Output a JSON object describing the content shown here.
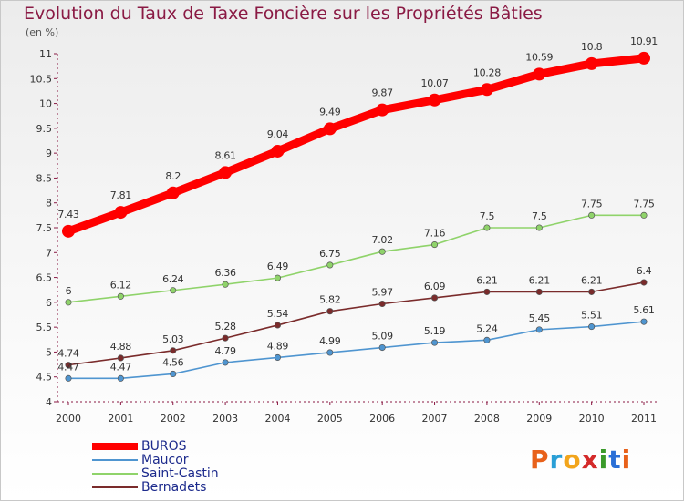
{
  "header": {
    "title": "Evolution du Taux de Taxe Foncière sur les Propriétés Bâties",
    "unit": "(en %)"
  },
  "brand": {
    "text": "Proxiti",
    "letters": [
      "P",
      "r",
      "o",
      "x",
      "i",
      "t",
      "i"
    ],
    "colors": [
      "#e8611a",
      "#2a9fd6",
      "#f2a51c",
      "#d42a2a",
      "#3a9a2a",
      "#2a6fd6",
      "#e8611a"
    ]
  },
  "chart_data": {
    "type": "line",
    "title": "Evolution du Taux de Taxe Foncière sur les Propriétés Bâties",
    "ylabel": "(en %)",
    "xlabel": "",
    "ylim": [
      4,
      11
    ],
    "yticks": [
      "4",
      "4.5",
      "5",
      "5.5",
      "6",
      "6.5",
      "7",
      "7.5",
      "8",
      "8.5",
      "9",
      "9.5",
      "10",
      "10.5",
      "11"
    ],
    "x": [
      "2000",
      "2001",
      "2002",
      "2003",
      "2004",
      "2005",
      "2006",
      "2007",
      "2008",
      "2009",
      "2010",
      "2011"
    ],
    "grid": false,
    "legend_position": "bottom-left",
    "series": [
      {
        "name": "BUROS",
        "color": "#ff0000",
        "values": [
          7.43,
          7.81,
          8.2,
          8.61,
          9.04,
          9.49,
          9.87,
          10.07,
          10.28,
          10.59,
          10.8,
          10.91
        ],
        "labels": [
          "7.43",
          "7.81",
          "8.2",
          "8.61",
          "9.04",
          "9.49",
          "9.87",
          "10.07",
          "10.28",
          "10.59",
          "10.8",
          "10.91"
        ]
      },
      {
        "name": "Maucor",
        "color": "#4f95d0",
        "values": [
          4.47,
          4.47,
          4.56,
          4.79,
          4.89,
          4.99,
          5.09,
          5.19,
          5.24,
          5.45,
          5.51,
          5.61
        ],
        "labels": [
          "4.47",
          "4.47",
          "4.56",
          "4.79",
          "4.89",
          "4.99",
          "5.09",
          "5.19",
          "5.24",
          "5.45",
          "5.51",
          "5.61"
        ]
      },
      {
        "name": "Saint-Castin",
        "color": "#8fd36a",
        "values": [
          6,
          6.12,
          6.24,
          6.36,
          6.49,
          6.75,
          7.02,
          7.16,
          7.5,
          7.5,
          7.75,
          7.75
        ],
        "labels": [
          "6",
          "6.12",
          "6.24",
          "6.36",
          "6.49",
          "6.75",
          "7.02",
          "7.16",
          "7.5",
          "7.5",
          "7.75",
          "7.75"
        ]
      },
      {
        "name": "Bernadets",
        "color": "#7a2b2b",
        "values": [
          4.74,
          4.88,
          5.03,
          5.28,
          5.54,
          5.82,
          5.97,
          6.09,
          6.21,
          6.21,
          6.21,
          6.4
        ],
        "labels": [
          "4.74",
          "4.88",
          "5.03",
          "5.28",
          "5.54",
          "5.82",
          "5.97",
          "6.09",
          "6.21",
          "6.21",
          "6.21",
          "6.4"
        ]
      }
    ]
  }
}
